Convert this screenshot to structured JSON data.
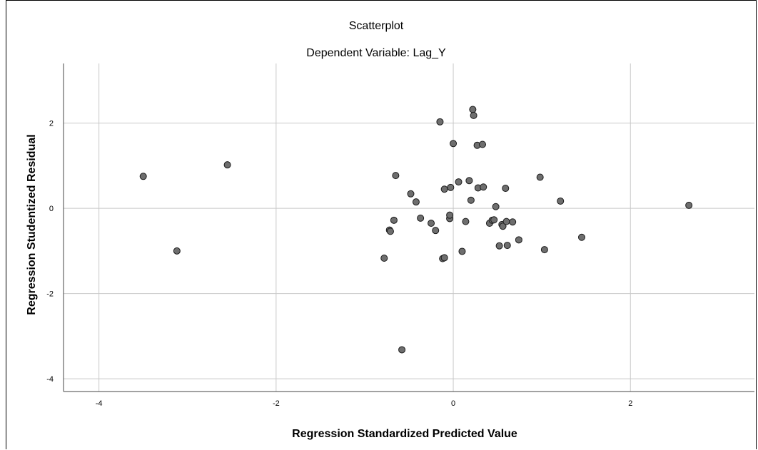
{
  "chart_data": {
    "type": "scatter",
    "title": "Scatterplot",
    "subtitle": "Dependent Variable: Lag_Y",
    "xlabel": "Regression Standardized Predicted Value",
    "ylabel": "Regression Studentized Residual",
    "xlim": [
      -4.4,
      3.4
    ],
    "ylim": [
      -4.3,
      3.4
    ],
    "xticks": [
      -4,
      -2,
      0,
      2
    ],
    "yticks": [
      -4,
      -2,
      0,
      2
    ],
    "grid": true,
    "colors": {
      "point_fill": "#6e6e6e",
      "point_stroke": "#1a1a1a",
      "grid": "#c8c8c8"
    },
    "points": [
      {
        "x": -3.5,
        "y": 0.75
      },
      {
        "x": -3.12,
        "y": -1.0
      },
      {
        "x": -2.55,
        "y": 1.02
      },
      {
        "x": -0.78,
        "y": -1.17
      },
      {
        "x": -0.72,
        "y": -0.51
      },
      {
        "x": -0.71,
        "y": -0.54
      },
      {
        "x": -0.67,
        "y": -0.28
      },
      {
        "x": -0.65,
        "y": 0.77
      },
      {
        "x": -0.58,
        "y": -3.32
      },
      {
        "x": -0.48,
        "y": 0.34
      },
      {
        "x": -0.42,
        "y": 0.15
      },
      {
        "x": -0.37,
        "y": -0.23
      },
      {
        "x": -0.25,
        "y": -0.35
      },
      {
        "x": -0.2,
        "y": -0.52
      },
      {
        "x": -0.15,
        "y": 2.03
      },
      {
        "x": -0.12,
        "y": -1.18
      },
      {
        "x": -0.1,
        "y": -1.16
      },
      {
        "x": -0.1,
        "y": 0.45
      },
      {
        "x": -0.04,
        "y": -0.24
      },
      {
        "x": -0.04,
        "y": -0.16
      },
      {
        "x": -0.03,
        "y": 0.49
      },
      {
        "x": 0.0,
        "y": 1.52
      },
      {
        "x": 0.06,
        "y": 0.62
      },
      {
        "x": 0.1,
        "y": -1.01
      },
      {
        "x": 0.14,
        "y": -0.31
      },
      {
        "x": 0.18,
        "y": 0.65
      },
      {
        "x": 0.2,
        "y": 0.19
      },
      {
        "x": 0.22,
        "y": 2.32
      },
      {
        "x": 0.23,
        "y": 2.18
      },
      {
        "x": 0.27,
        "y": 1.48
      },
      {
        "x": 0.28,
        "y": 0.48
      },
      {
        "x": 0.33,
        "y": 1.5
      },
      {
        "x": 0.34,
        "y": 0.5
      },
      {
        "x": 0.41,
        "y": -0.35
      },
      {
        "x": 0.44,
        "y": -0.28
      },
      {
        "x": 0.46,
        "y": -0.27
      },
      {
        "x": 0.48,
        "y": 0.04
      },
      {
        "x": 0.52,
        "y": -0.88
      },
      {
        "x": 0.55,
        "y": -0.38
      },
      {
        "x": 0.56,
        "y": -0.42
      },
      {
        "x": 0.59,
        "y": 0.47
      },
      {
        "x": 0.6,
        "y": -0.31
      },
      {
        "x": 0.61,
        "y": -0.87
      },
      {
        "x": 0.67,
        "y": -0.32
      },
      {
        "x": 0.74,
        "y": -0.74
      },
      {
        "x": 0.98,
        "y": 0.73
      },
      {
        "x": 1.03,
        "y": -0.97
      },
      {
        "x": 1.21,
        "y": 0.17
      },
      {
        "x": 1.45,
        "y": -0.68
      },
      {
        "x": 2.66,
        "y": 0.07
      }
    ]
  }
}
